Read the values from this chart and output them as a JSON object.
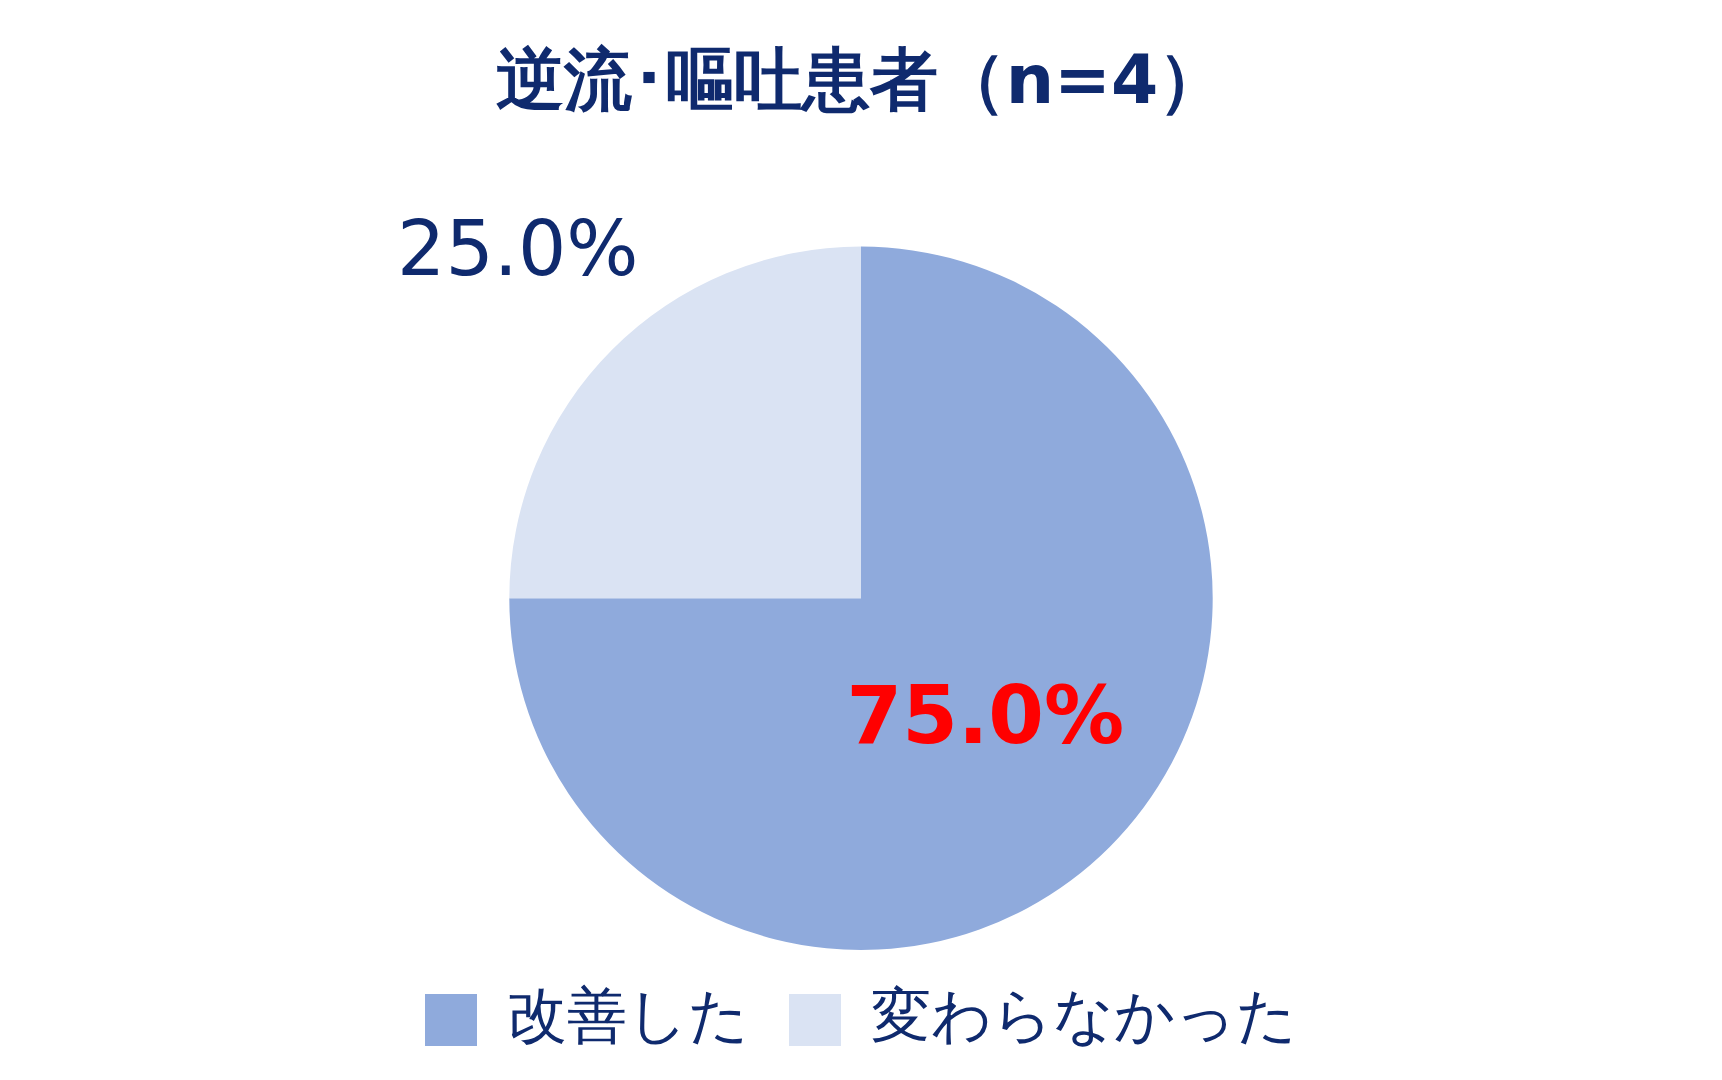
{
  "chart_data": {
    "type": "pie",
    "title": "逆流･嘔吐患者（n=4）",
    "categories": [
      "改善した",
      "変わらなかった"
    ],
    "values": [
      75,
      25
    ],
    "colors": [
      "#8faadc",
      "#dae3f3"
    ],
    "value_labels": [
      "75.0%",
      "25.0%"
    ],
    "legend": "bottom"
  }
}
